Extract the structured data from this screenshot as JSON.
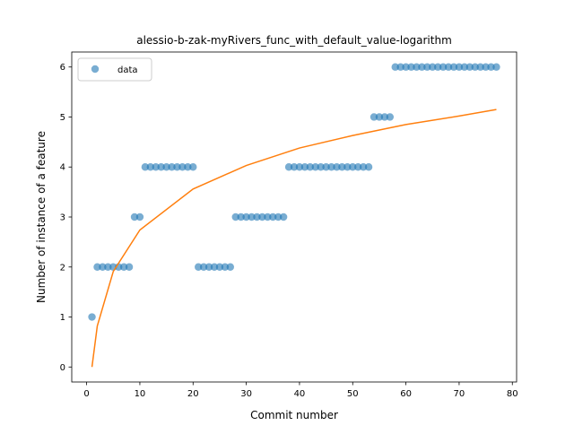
{
  "chart_data": {
    "type": "scatter",
    "title": "alessio-b-zak-myRivers_func_with_default_value-logarithm",
    "xlabel": "Commit number",
    "ylabel": "Number of instance of a feature",
    "xlim": [
      -2.8,
      80.8
    ],
    "ylim": [
      -0.3,
      6.3
    ],
    "xticks": [
      0,
      10,
      20,
      30,
      40,
      50,
      60,
      70,
      80
    ],
    "yticks": [
      0,
      1,
      2,
      3,
      4,
      5,
      6
    ],
    "grid": false,
    "legend": {
      "position": "upper-left",
      "entries": [
        "data"
      ]
    },
    "colors": {
      "data": "#1f77b4",
      "fit": "#ff7f0e"
    },
    "series": [
      {
        "name": "data",
        "kind": "scatter",
        "x": [
          1,
          2,
          3,
          4,
          5,
          6,
          7,
          8,
          9,
          10,
          11,
          12,
          13,
          14,
          15,
          16,
          17,
          18,
          19,
          20,
          21,
          22,
          23,
          24,
          25,
          26,
          27,
          28,
          29,
          30,
          31,
          32,
          33,
          34,
          35,
          36,
          37,
          38,
          39,
          40,
          41,
          42,
          43,
          44,
          45,
          46,
          47,
          48,
          49,
          50,
          51,
          52,
          53,
          54,
          55,
          56,
          57,
          58,
          59,
          60,
          61,
          62,
          63,
          64,
          65,
          66,
          67,
          68,
          69,
          70,
          71,
          72,
          73,
          74,
          75,
          76,
          77
        ],
        "y": [
          1,
          2,
          2,
          2,
          2,
          2,
          2,
          2,
          3,
          3,
          4,
          4,
          4,
          4,
          4,
          4,
          4,
          4,
          4,
          4,
          2,
          2,
          2,
          2,
          2,
          2,
          2,
          3,
          3,
          3,
          3,
          3,
          3,
          3,
          3,
          3,
          3,
          4,
          4,
          4,
          4,
          4,
          4,
          4,
          4,
          4,
          4,
          4,
          4,
          4,
          4,
          4,
          4,
          5,
          5,
          5,
          5,
          6,
          6,
          6,
          6,
          6,
          6,
          6,
          6,
          6,
          6,
          6,
          6,
          6,
          6,
          6,
          6,
          6,
          6,
          6,
          6
        ]
      },
      {
        "kind": "line",
        "function": "logarithm",
        "x_range": [
          1,
          77
        ],
        "points": [
          [
            1,
            0
          ],
          [
            2,
            0.82
          ],
          [
            5,
            1.91
          ],
          [
            10,
            2.74
          ],
          [
            20,
            3.56
          ],
          [
            30,
            4.03
          ],
          [
            40,
            4.38
          ],
          [
            50,
            4.63
          ],
          [
            60,
            4.85
          ],
          [
            70,
            5.02
          ],
          [
            77,
            5.15
          ]
        ]
      }
    ]
  }
}
